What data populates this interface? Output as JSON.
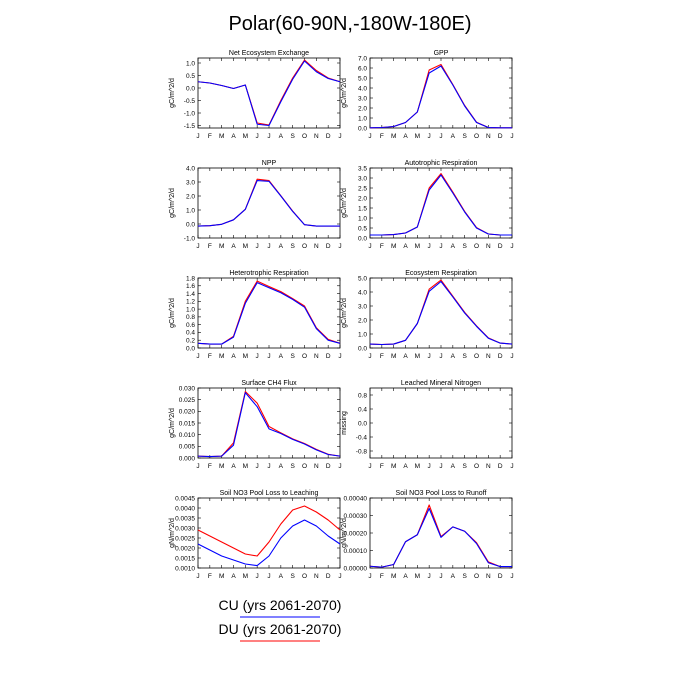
{
  "title": "Polar(60-90N,-180W-180E)",
  "colors": {
    "cu": "#0000ff",
    "du": "#ff0000",
    "axis": "#000000"
  },
  "months": [
    "J",
    "F",
    "M",
    "A",
    "M",
    "J",
    "J",
    "A",
    "S",
    "O",
    "N",
    "D",
    "J"
  ],
  "legend": {
    "cu_label": "CU (yrs 2061-2070)",
    "du_label": "DU (yrs 2061-2070)"
  },
  "chart_data": [
    {
      "type": "line",
      "title": "Net Ecosystem Exchange",
      "ylabel": "gC/m^2/d",
      "ylim": [
        -1.6,
        1.2
      ],
      "yticks": [
        -1.5,
        -1.0,
        -0.5,
        0.0,
        0.5,
        1.0
      ],
      "ytick_labels": [
        "-1.5",
        "-1.0",
        "-0.5",
        "0.0",
        "0.5",
        "1.0"
      ],
      "series": [
        {
          "name": "CU",
          "values": [
            0.25,
            0.2,
            0.1,
            -0.02,
            0.12,
            -1.45,
            -1.5,
            -0.55,
            0.35,
            1.08,
            0.65,
            0.38,
            0.25
          ]
        },
        {
          "name": "DU",
          "values": [
            0.25,
            0.2,
            0.1,
            -0.02,
            0.12,
            -1.4,
            -1.48,
            -0.5,
            0.4,
            1.12,
            0.7,
            0.4,
            0.25
          ]
        }
      ]
    },
    {
      "type": "line",
      "title": "GPP",
      "ylabel": "gC/m^2/d",
      "ylim": [
        0,
        7
      ],
      "yticks": [
        0,
        1,
        2,
        3,
        4,
        5,
        6,
        7
      ],
      "ytick_labels": [
        "0.0",
        "1.0",
        "2.0",
        "3.0",
        "4.0",
        "5.0",
        "6.0",
        "7.0"
      ],
      "series": [
        {
          "name": "CU",
          "values": [
            0.02,
            0.05,
            0.15,
            0.55,
            1.6,
            5.5,
            6.2,
            4.3,
            2.2,
            0.55,
            0.05,
            0.02,
            0.02
          ]
        },
        {
          "name": "DU",
          "values": [
            0.02,
            0.05,
            0.15,
            0.55,
            1.6,
            5.8,
            6.35,
            4.35,
            2.25,
            0.58,
            0.05,
            0.02,
            0.02
          ]
        }
      ]
    },
    {
      "type": "line",
      "title": "NPP",
      "ylabel": "gC/m^2/d",
      "ylim": [
        -1,
        4
      ],
      "yticks": [
        -1,
        0,
        1,
        2,
        3,
        4
      ],
      "ytick_labels": [
        "-1.0",
        "0.0",
        "1.0",
        "2.0",
        "3.0",
        "4.0"
      ],
      "series": [
        {
          "name": "CU",
          "values": [
            -0.15,
            -0.12,
            -0.02,
            0.3,
            1.05,
            3.1,
            3.05,
            2.0,
            0.9,
            -0.05,
            -0.15,
            -0.15,
            -0.15
          ]
        },
        {
          "name": "DU",
          "values": [
            -0.15,
            -0.12,
            -0.02,
            0.3,
            1.05,
            3.2,
            3.1,
            2.02,
            0.92,
            -0.05,
            -0.15,
            -0.15,
            -0.15
          ]
        }
      ]
    },
    {
      "type": "line",
      "title": "Autotrophic Respiration",
      "ylabel": "gC/m^2/d",
      "ylim": [
        0,
        3.5
      ],
      "yticks": [
        0,
        0.5,
        1,
        1.5,
        2,
        2.5,
        3,
        3.5
      ],
      "ytick_labels": [
        "0.0",
        "0.5",
        "1.0",
        "1.5",
        "2.0",
        "2.5",
        "3.0",
        "3.5"
      ],
      "series": [
        {
          "name": "CU",
          "values": [
            0.15,
            0.15,
            0.17,
            0.25,
            0.55,
            2.4,
            3.15,
            2.25,
            1.3,
            0.5,
            0.2,
            0.15,
            0.15
          ]
        },
        {
          "name": "DU",
          "values": [
            0.15,
            0.15,
            0.17,
            0.25,
            0.55,
            2.5,
            3.22,
            2.3,
            1.33,
            0.52,
            0.2,
            0.15,
            0.15
          ]
        }
      ]
    },
    {
      "type": "line",
      "title": "Heterotrophic Respiration",
      "ylabel": "gC/m^2/d",
      "ylim": [
        0,
        1.8
      ],
      "yticks": [
        0,
        0.2,
        0.4,
        0.6,
        0.8,
        1.0,
        1.2,
        1.4,
        1.6,
        1.8
      ],
      "ytick_labels": [
        "0.0",
        "0.2",
        "0.4",
        "0.6",
        "0.8",
        "1.0",
        "1.2",
        "1.4",
        "1.6",
        "1.8"
      ],
      "series": [
        {
          "name": "CU",
          "values": [
            0.12,
            0.1,
            0.1,
            0.28,
            1.15,
            1.68,
            1.55,
            1.42,
            1.25,
            1.05,
            0.5,
            0.2,
            0.12
          ]
        },
        {
          "name": "DU",
          "values": [
            0.12,
            0.1,
            0.1,
            0.3,
            1.2,
            1.72,
            1.58,
            1.45,
            1.27,
            1.08,
            0.52,
            0.22,
            0.12
          ]
        }
      ]
    },
    {
      "type": "line",
      "title": "Ecosystem Respiration",
      "ylabel": "gC/m^2/d",
      "ylim": [
        0,
        5
      ],
      "yticks": [
        0,
        1,
        2,
        3,
        4,
        5
      ],
      "ytick_labels": [
        "0.0",
        "1.0",
        "2.0",
        "3.0",
        "4.0",
        "5.0"
      ],
      "series": [
        {
          "name": "CU",
          "values": [
            0.28,
            0.25,
            0.28,
            0.55,
            1.75,
            4.05,
            4.75,
            3.65,
            2.5,
            1.55,
            0.7,
            0.35,
            0.28
          ]
        },
        {
          "name": "DU",
          "values": [
            0.28,
            0.25,
            0.28,
            0.55,
            1.75,
            4.2,
            4.85,
            3.7,
            2.55,
            1.58,
            0.72,
            0.35,
            0.28
          ]
        }
      ]
    },
    {
      "type": "line",
      "title": "Surface CH4 Flux",
      "ylabel": "gC/m^2/d",
      "ylim": [
        0,
        0.03
      ],
      "yticks": [
        0,
        0.005,
        0.01,
        0.015,
        0.02,
        0.025,
        0.03
      ],
      "ytick_labels": [
        "0.000",
        "0.005",
        "0.010",
        "0.015",
        "0.020",
        "0.025",
        "0.030"
      ],
      "series": [
        {
          "name": "CU",
          "values": [
            0.0008,
            0.0006,
            0.0008,
            0.0055,
            0.028,
            0.022,
            0.0125,
            0.0105,
            0.008,
            0.006,
            0.0035,
            0.0015,
            0.0008
          ]
        },
        {
          "name": "DU",
          "values": [
            0.0008,
            0.0006,
            0.0008,
            0.0065,
            0.0285,
            0.0235,
            0.0135,
            0.0108,
            0.0082,
            0.0062,
            0.0037,
            0.0016,
            0.0008
          ]
        }
      ]
    },
    {
      "type": "line",
      "title": "Leached Mineral Nitrogen",
      "ylabel": "missing",
      "ylim": [
        -1,
        1
      ],
      "yticks": [
        -0.8,
        -0.4,
        0,
        0.4,
        0.8
      ],
      "ytick_labels": [
        "-0.8",
        "-0.4",
        "0.0",
        "0.4",
        "0.8"
      ],
      "series": []
    },
    {
      "type": "line",
      "title": "Soil NO3 Pool Loss to Leaching",
      "ylabel": "gN/m^2/d",
      "ylim": [
        0.001,
        0.0045
      ],
      "yticks": [
        0.001,
        0.0015,
        0.002,
        0.0025,
        0.003,
        0.0035,
        0.004,
        0.0045
      ],
      "ytick_labels": [
        "0.0010",
        "0.0015",
        "0.0020",
        "0.0025",
        "0.0030",
        "0.0035",
        "0.0040",
        "0.0045"
      ],
      "series": [
        {
          "name": "CU",
          "values": [
            0.0022,
            0.0019,
            0.0016,
            0.0014,
            0.0012,
            0.00112,
            0.0016,
            0.0025,
            0.0031,
            0.0034,
            0.0031,
            0.0026,
            0.0022
          ]
        },
        {
          "name": "DU",
          "values": [
            0.0029,
            0.0026,
            0.0023,
            0.002,
            0.0017,
            0.0016,
            0.0023,
            0.0032,
            0.0039,
            0.0041,
            0.0038,
            0.0034,
            0.0029
          ]
        }
      ]
    },
    {
      "type": "line",
      "title": "Soil NO3 Pool Loss to Runoff",
      "ylabel": "gN/m^2/d",
      "ylim": [
        0,
        0.0004
      ],
      "yticks": [
        0,
        0.0001,
        0.0002,
        0.0003,
        0.0004
      ],
      "ytick_labels": [
        "0.00000",
        "0.00010",
        "0.00020",
        "0.00030",
        "0.00040"
      ],
      "series": [
        {
          "name": "CU",
          "values": [
            1e-05,
            5e-06,
            2e-05,
            0.00015,
            0.00019,
            0.00034,
            0.000175,
            0.000235,
            0.00021,
            0.00014,
            3e-05,
            8e-06,
            8e-06
          ]
        },
        {
          "name": "DU",
          "values": [
            1e-05,
            5e-06,
            2e-05,
            0.00015,
            0.00019,
            0.00036,
            0.00018,
            0.000235,
            0.00021,
            0.000145,
            3.5e-05,
            8e-06,
            8e-06
          ]
        }
      ]
    }
  ]
}
